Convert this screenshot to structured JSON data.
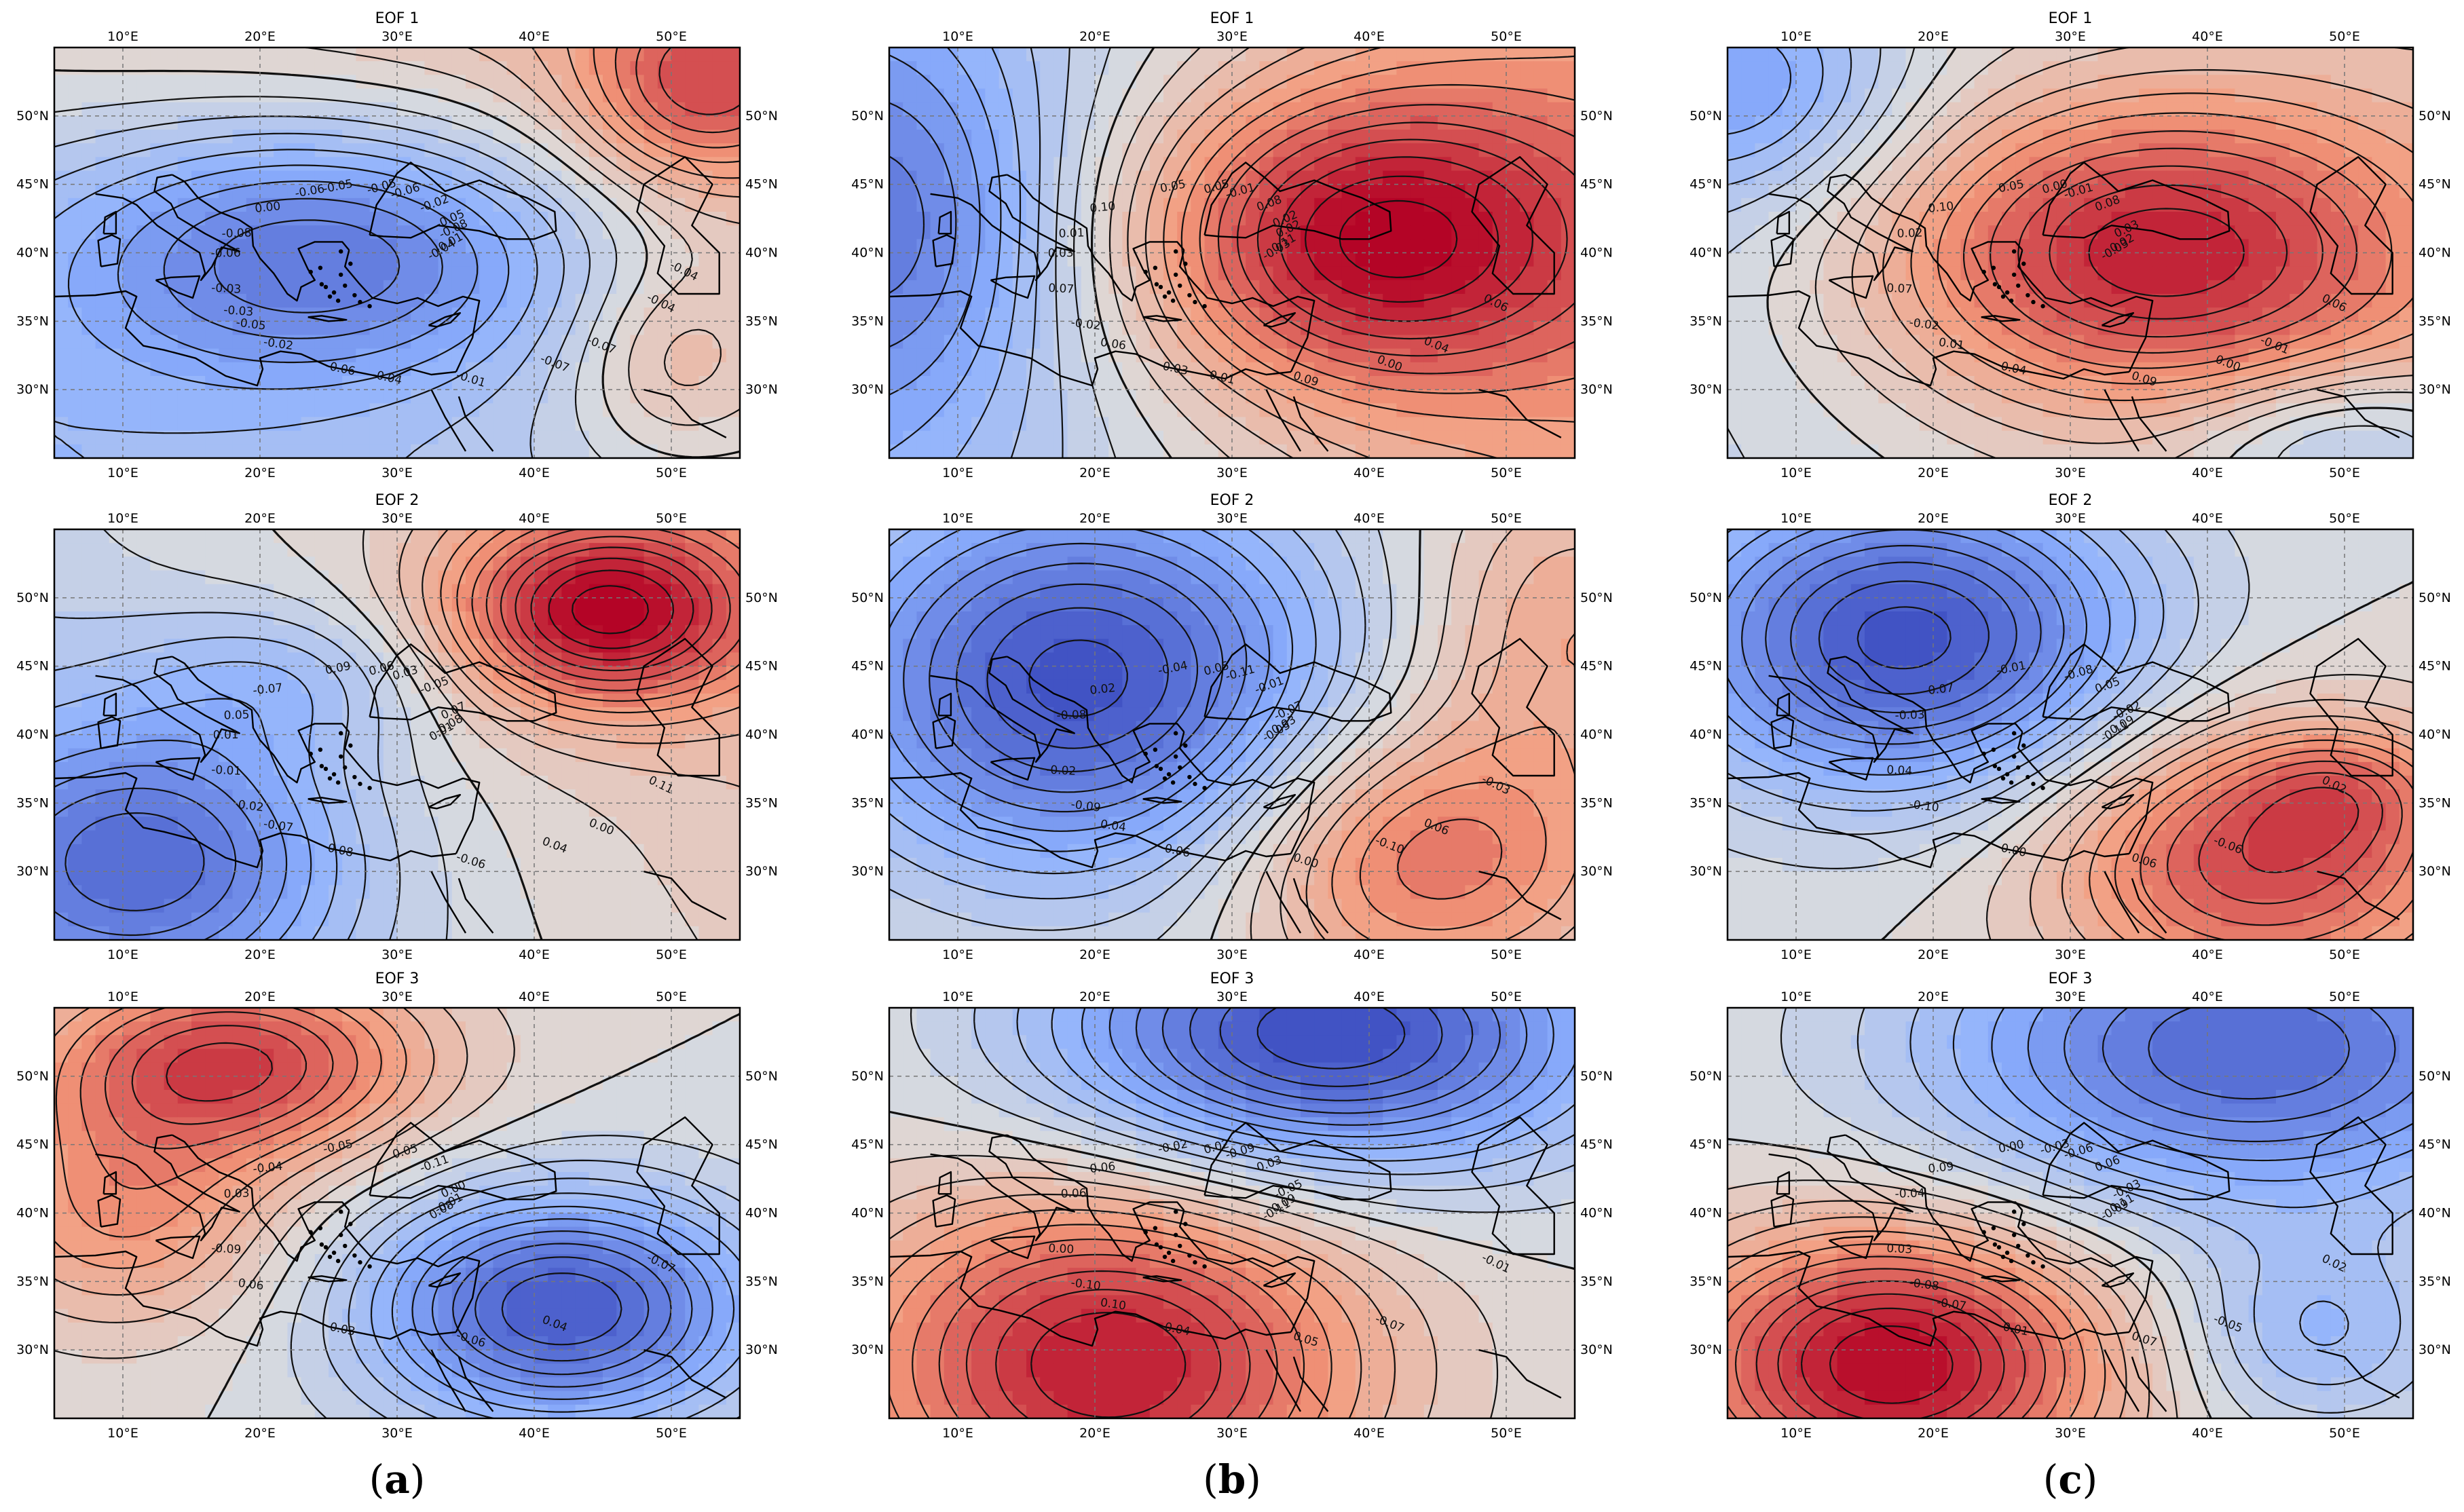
{
  "figure": {
    "columns": [
      {
        "caption_open": "(",
        "caption_letter": "a",
        "caption_close": ")",
        "panels": [
          {
            "title": "EOF 1",
            "pattern": {
              "sign": "negative",
              "field": "basin-wide negative loading centred over the Balkans, Aegean and western Anatolia; weakening towards the north-east and south-east"
            },
            "contour_labels": [
              "-0.04",
              "-0.05",
              "-0.06",
              "-0.07",
              "-0.08",
              "-0.08",
              "-0.06",
              "-0.05",
              "-0.04",
              "-0.03",
              "-0.02",
              "-0.01",
              "0.00",
              "-0.01",
              "-0.02",
              "-0.05",
              "-0.07",
              "-0.06",
              "-0.05",
              "-0.04",
              "-0.06",
              "-0.04",
              "-0.03"
            ]
          },
          {
            "title": "EOF 2",
            "pattern": {
              "field": "dipole: positive over eastern Europe / southern Russia, negative over the western and central Mediterranean"
            },
            "contour_labels": [
              "0.01",
              "0.02",
              "0.03",
              "0.04",
              "0.05",
              "0.07",
              "0.08",
              "0.09",
              "0.11",
              "-0.01",
              "-0.05",
              "-0.06",
              "-0.07",
              "-0.08",
              "-0.07",
              "0.06",
              "0.00",
              "0.01"
            ]
          },
          {
            "title": "EOF 3",
            "pattern": {
              "field": "dipole: positive over central Europe, negative over the eastern Mediterranean and Middle East"
            },
            "contour_labels": [
              "0.08",
              "0.06",
              "0.05",
              "0.04",
              "0.03",
              "0.00",
              "-0.03",
              "-0.05",
              "-0.07",
              "-0.09",
              "-0.11",
              "-0.06",
              "-0.04",
              "-0.01"
            ]
          }
        ]
      },
      {
        "caption_open": "(",
        "caption_letter": "b",
        "caption_close": ")",
        "panels": [
          {
            "title": "EOF 1",
            "pattern": {
              "field": "dipole: strong positive centre over the Black Sea / Anatolia, negative over the western Mediterranean"
            },
            "contour_labels": [
              "-0.03",
              "-0.02",
              "-0.01",
              "0.00",
              "0.01",
              "0.02",
              "0.03",
              "0.05",
              "0.06",
              "0.07",
              "0.08",
              "0.09",
              "0.10",
              "0.11",
              "0.06",
              "0.05",
              "0.04",
              "0.03",
              "0.02",
              "0.01"
            ]
          },
          {
            "title": "EOF 2",
            "pattern": {
              "field": "dipole: negative centre over Italy / western Balkans, positive centre over the Middle East"
            },
            "contour_labels": [
              "-0.05",
              "-0.09",
              "-0.11",
              "-0.10",
              "-0.08",
              "-0.07",
              "-0.06",
              "-0.04",
              "-0.03",
              "-0.02",
              "-0.01",
              "0.00",
              "0.02",
              "0.03",
              "0.04",
              "0.05",
              "0.06"
            ]
          },
          {
            "title": "EOF 3",
            "pattern": {
              "field": "dipole: negative centre over central-eastern Europe, positive centre over Libya / central Mediterranean"
            },
            "contour_labels": [
              "-0.11",
              "-0.10",
              "-0.09",
              "-0.07",
              "-0.06",
              "-0.05",
              "-0.04",
              "-0.02",
              "-0.01",
              "0.00",
              "0.03",
              "0.05",
              "0.06",
              "0.09",
              "0.10",
              "0.02"
            ]
          }
        ]
      },
      {
        "caption_open": "(",
        "caption_letter": "c",
        "caption_close": ")",
        "panels": [
          {
            "title": "EOF 1",
            "pattern": {
              "field": "positive centre over Anatolia / eastern Mediterranean, negative over the north-west corner"
            },
            "contour_labels": [
              "-0.03",
              "-0.02",
              "-0.01",
              "0.00",
              "0.02",
              "0.03",
              "0.04",
              "0.05",
              "0.06",
              "0.07",
              "0.08",
              "0.09",
              "0.10",
              "0.02",
              "0.01",
              "0.00",
              "-0.01"
            ]
          },
          {
            "title": "EOF 2",
            "pattern": {
              "field": "dipole: negative centre over central Europe / Balkans, positive centre over the Middle East"
            },
            "contour_labels": [
              "-0.11",
              "-0.10",
              "-0.08",
              "-0.06",
              "-0.03",
              "-0.02",
              "0.00",
              "-0.01",
              "0.02",
              "0.04",
              "0.05",
              "0.06",
              "0.07",
              "0.09"
            ]
          },
          {
            "title": "EOF 3",
            "pattern": {
              "field": "dipole: positive centre over Libya / central Mediterranean, negative over north-east Europe"
            },
            "contour_labels": [
              "-0.09",
              "-0.08",
              "-0.06",
              "-0.05",
              "-0.04",
              "-0.03",
              "-0.01",
              "0.00",
              "0.02",
              "0.03",
              "0.06",
              "0.07",
              "0.09",
              "0.11",
              "-0.07",
              "-0.03"
            ]
          }
        ]
      }
    ],
    "axes": {
      "lon_ticks": [
        "10°E",
        "20°E",
        "30°E",
        "40°E",
        "50°E"
      ],
      "lat_ticks": [
        "50°N",
        "45°N",
        "40°N",
        "35°N",
        "30°N"
      ],
      "lon_range": [
        5,
        55
      ],
      "lat_range": [
        25,
        55
      ]
    },
    "colormap": {
      "name": "coolwarm",
      "neg_strong": "#3b4cc0",
      "neg_mid": "#8db0fe",
      "neutral": "#dddddd",
      "pos_mid": "#f49a7b",
      "pos_strong": "#b40426"
    }
  }
}
